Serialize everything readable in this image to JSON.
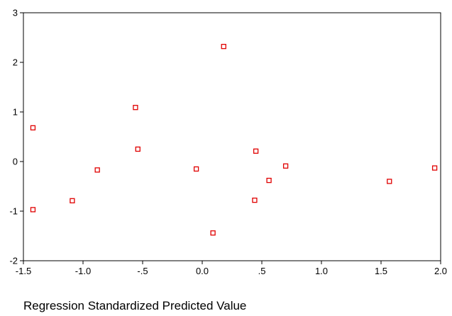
{
  "chart_data": {
    "type": "scatter",
    "title": "",
    "xlabel": "Regression Standardized Predicted Value",
    "ylabel": "",
    "xlim": [
      -1.5,
      2.0
    ],
    "ylim": [
      -2.0,
      3.0
    ],
    "x_ticks": [
      {
        "value": -1.5,
        "label": "-1.5"
      },
      {
        "value": -1.0,
        "label": "-1.0"
      },
      {
        "value": -0.5,
        "label": "-.5"
      },
      {
        "value": 0.0,
        "label": "0.0"
      },
      {
        "value": 0.5,
        "label": ".5"
      },
      {
        "value": 1.0,
        "label": "1.0"
      },
      {
        "value": 1.5,
        "label": "1.5"
      },
      {
        "value": 2.0,
        "label": "2.0"
      }
    ],
    "y_ticks": [
      {
        "value": -2,
        "label": "-2"
      },
      {
        "value": -1,
        "label": "-1"
      },
      {
        "value": 0,
        "label": "0"
      },
      {
        "value": 1,
        "label": "1"
      },
      {
        "value": 2,
        "label": "2"
      },
      {
        "value": 3,
        "label": "3"
      }
    ],
    "grid": false,
    "marker": "hollow-square",
    "marker_color": "#e00000",
    "points": [
      {
        "x": 0.18,
        "y": 2.32
      },
      {
        "x": -0.56,
        "y": 1.09
      },
      {
        "x": -1.42,
        "y": 0.68
      },
      {
        "x": -0.54,
        "y": 0.25
      },
      {
        "x": 0.45,
        "y": 0.21
      },
      {
        "x": -0.88,
        "y": -0.17
      },
      {
        "x": -0.05,
        "y": -0.15
      },
      {
        "x": 0.7,
        "y": -0.09
      },
      {
        "x": 1.95,
        "y": -0.13
      },
      {
        "x": 0.56,
        "y": -0.38
      },
      {
        "x": 1.57,
        "y": -0.4
      },
      {
        "x": -1.09,
        "y": -0.79
      },
      {
        "x": 0.44,
        "y": -0.78
      },
      {
        "x": -1.42,
        "y": -0.97
      },
      {
        "x": 0.09,
        "y": -1.44
      }
    ]
  }
}
